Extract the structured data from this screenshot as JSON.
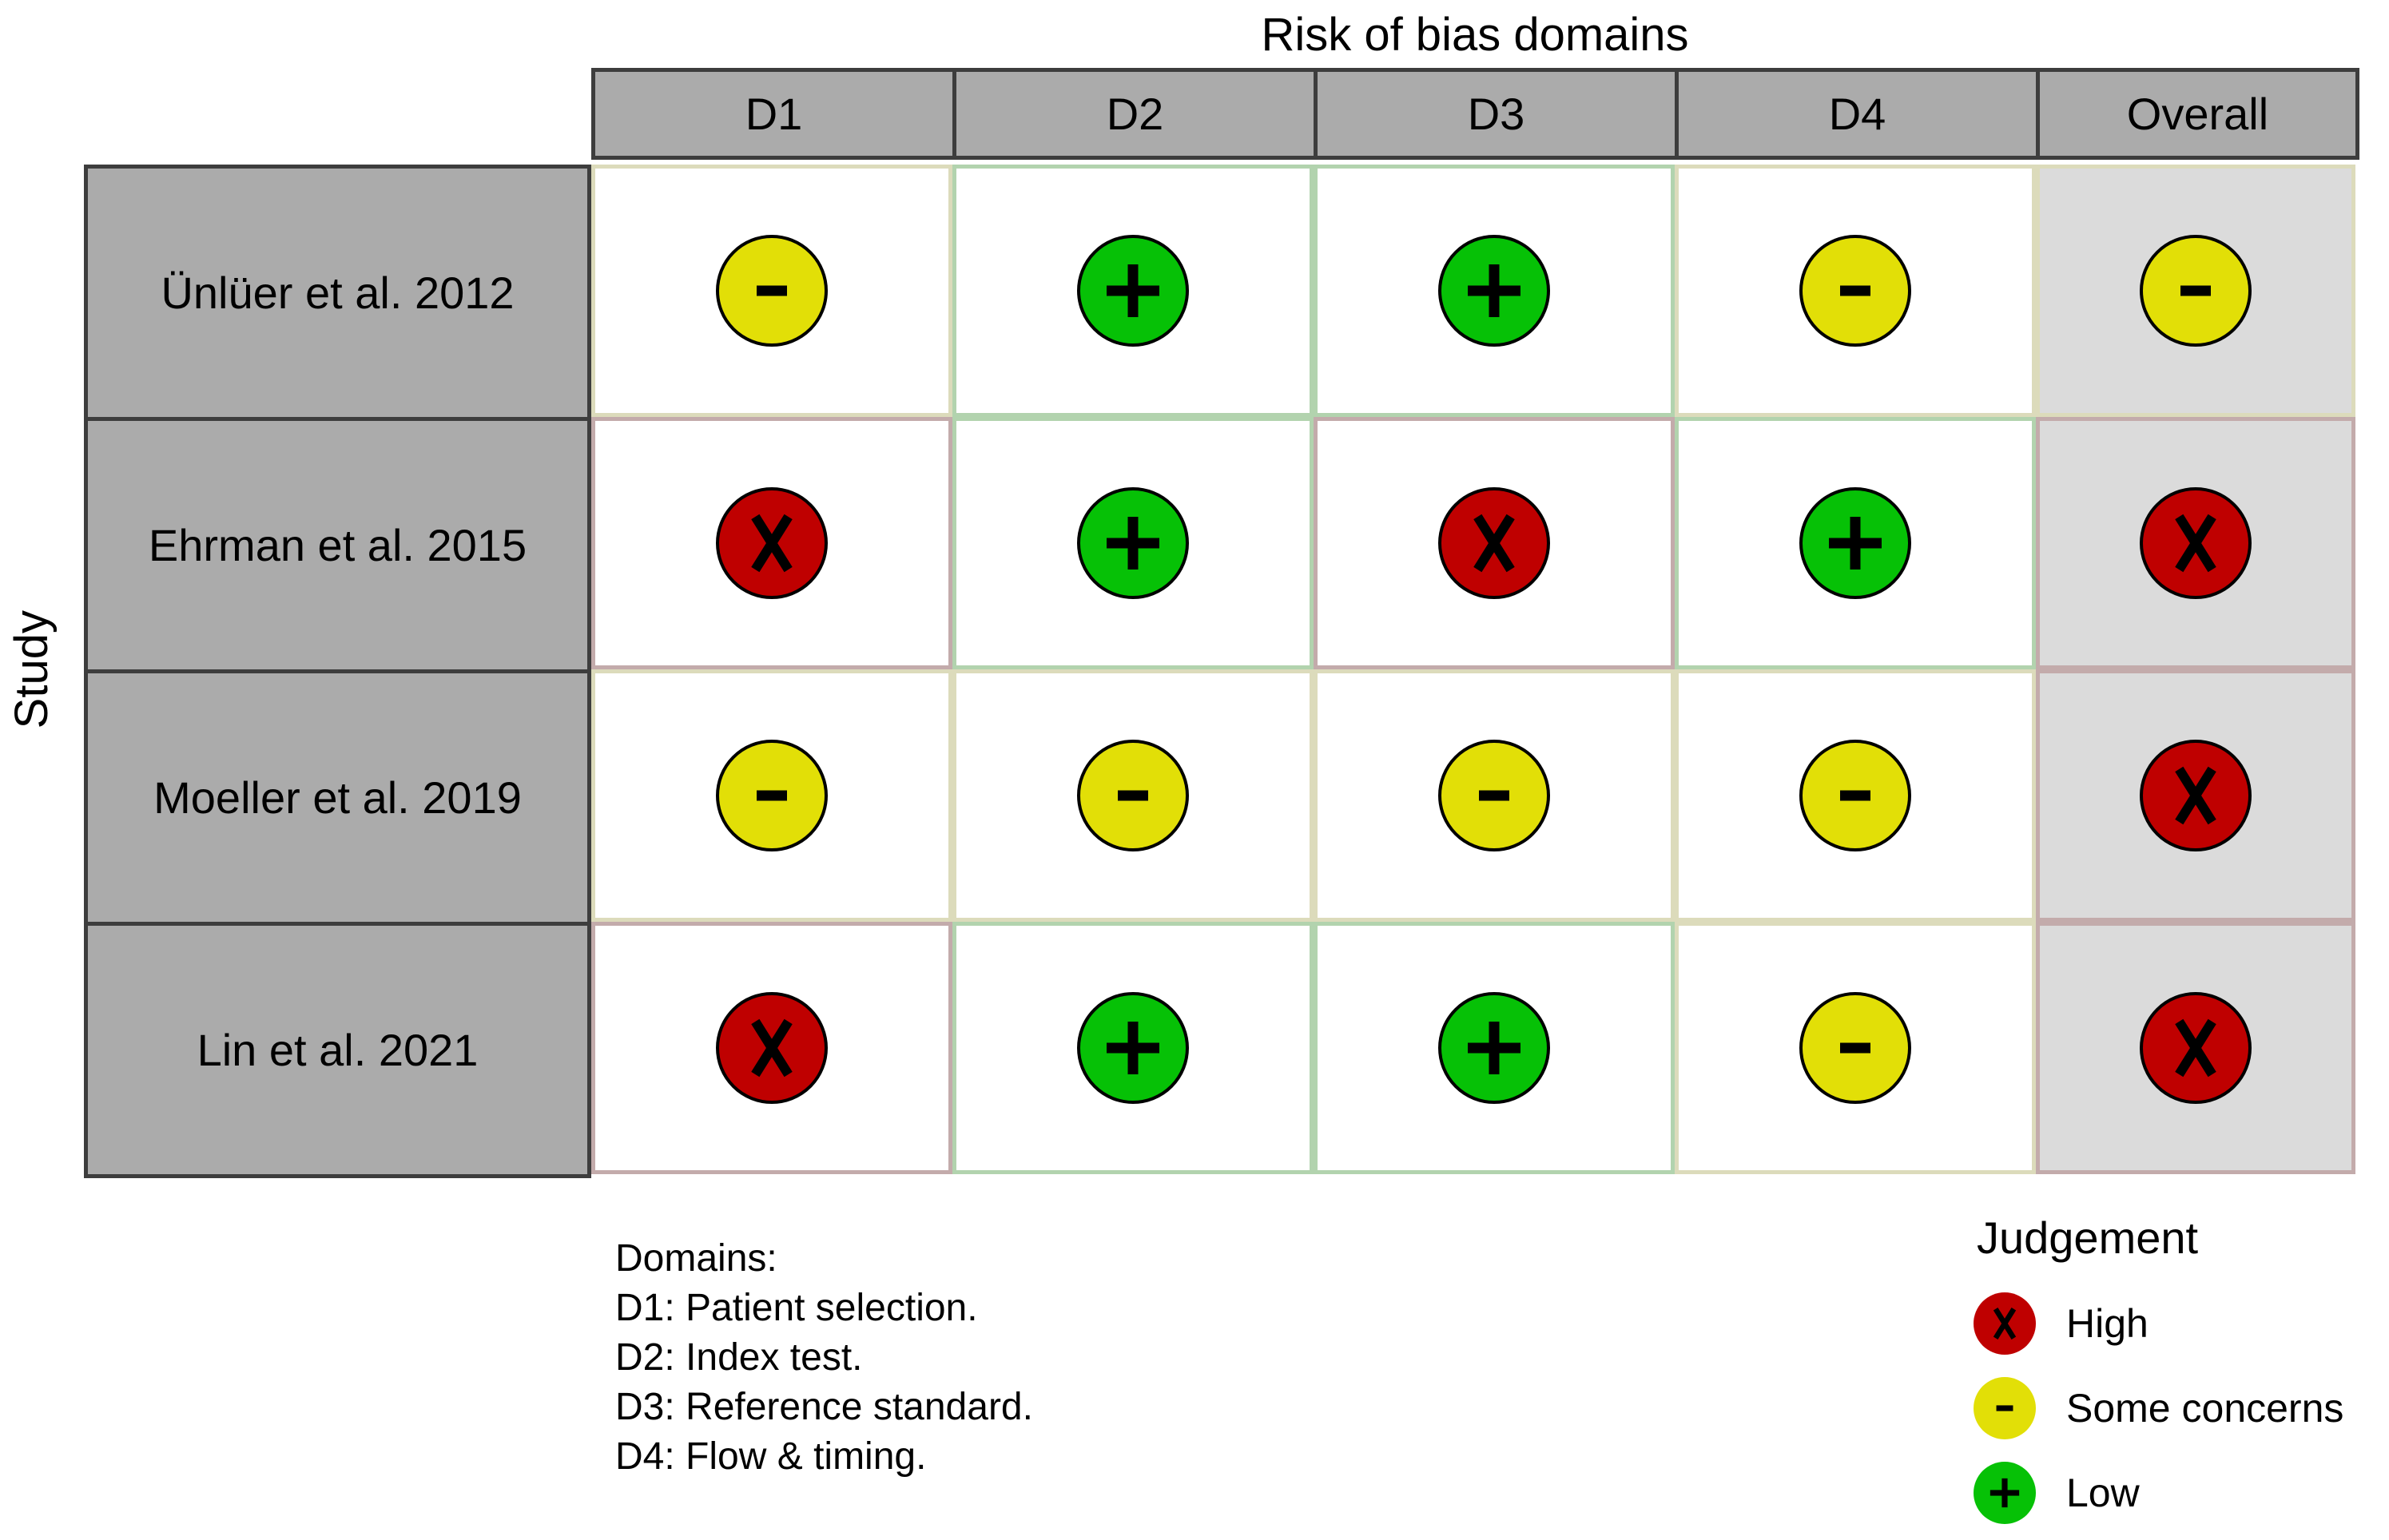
{
  "chart_data": {
    "type": "table",
    "title": "Risk of bias domains",
    "axis_label": "Study",
    "columns": [
      "D1",
      "D2",
      "D3",
      "D4",
      "Overall"
    ],
    "rows": [
      {
        "study": "Ünlüer et al. 2012",
        "judgements": [
          "some",
          "low",
          "low",
          "some",
          "some"
        ]
      },
      {
        "study": "Ehrman et al. 2015",
        "judgements": [
          "high",
          "low",
          "high",
          "low",
          "high"
        ]
      },
      {
        "study": "Moeller et al. 2019",
        "judgements": [
          "some",
          "some",
          "some",
          "some",
          "high"
        ]
      },
      {
        "study": "Lin et al. 2021",
        "judgements": [
          "high",
          "low",
          "low",
          "some",
          "high"
        ]
      }
    ],
    "footnote": {
      "heading": "Domains:",
      "lines": [
        "D1: Patient selection.",
        "D2: Index test.",
        "D3: Reference standard.",
        "D4: Flow & timing."
      ]
    },
    "legend": {
      "title": "Judgement",
      "items": [
        {
          "label": "High",
          "level": "high",
          "symbol": "x"
        },
        {
          "label": "Some concerns",
          "level": "some",
          "symbol": "-"
        },
        {
          "label": "Low",
          "level": "low",
          "symbol": "+"
        }
      ]
    }
  },
  "colors": {
    "high": "#BF0000",
    "some": "#E2DF07",
    "low": "#06C106",
    "header_bg": "#ABABAB",
    "overall_bg": "#DBDBDB"
  }
}
